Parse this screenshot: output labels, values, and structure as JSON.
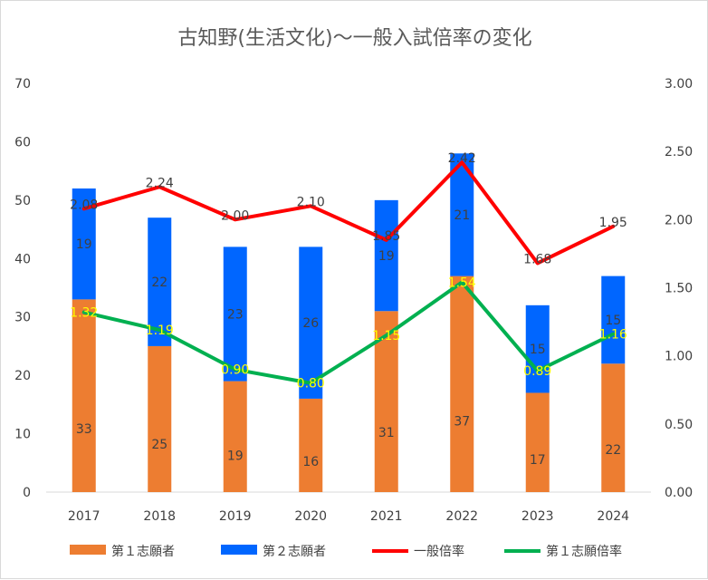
{
  "chart_data": {
    "type": "bar",
    "title": "古知野(生活文化)～一般入試倍率の変化",
    "categories": [
      "2017",
      "2018",
      "2019",
      "2020",
      "2021",
      "2022",
      "2023",
      "2024"
    ],
    "stacked": true,
    "y_left": {
      "min": 0,
      "max": 70,
      "ticks": [
        "0",
        "10",
        "20",
        "30",
        "40",
        "50",
        "60",
        "70"
      ]
    },
    "y_right": {
      "min": 0,
      "max": 3,
      "ticks": [
        "0.00",
        "0.50",
        "1.00",
        "1.50",
        "2.00",
        "2.50",
        "3.00"
      ]
    },
    "series": [
      {
        "name": "第１志願者",
        "kind": "bar",
        "axis": "left",
        "color": "#ed7d31",
        "values": [
          33,
          25,
          19,
          16,
          31,
          37,
          17,
          22
        ],
        "labels": [
          "33",
          "25",
          "19",
          "16",
          "31",
          "37",
          "17",
          "22"
        ]
      },
      {
        "name": "第２志願者",
        "kind": "bar",
        "axis": "left",
        "color": "#0066ff",
        "values": [
          19,
          22,
          23,
          26,
          19,
          21,
          15,
          15
        ],
        "labels": [
          "19",
          "22",
          "23",
          "26",
          "19",
          "21",
          "15",
          "15"
        ]
      },
      {
        "name": "一般倍率",
        "kind": "line",
        "axis": "right",
        "color": "#ff0000",
        "values": [
          2.08,
          2.24,
          2.0,
          2.1,
          1.85,
          2.42,
          1.68,
          1.95
        ],
        "labels": [
          "2.08",
          "2.24",
          "2.00",
          "2.10",
          "1.85",
          "2.42",
          "1.68",
          "1.95"
        ]
      },
      {
        "name": "第１志願倍率",
        "kind": "line",
        "axis": "right",
        "color": "#00b050",
        "values": [
          1.32,
          1.19,
          0.9,
          0.8,
          1.15,
          1.54,
          0.89,
          1.16
        ],
        "labels": [
          "1.32",
          "1.19",
          "0.90",
          "0.80",
          "1.15",
          "1.54",
          "0.89",
          "1.16"
        ]
      }
    ],
    "legend_position": "bottom",
    "grid": false
  }
}
